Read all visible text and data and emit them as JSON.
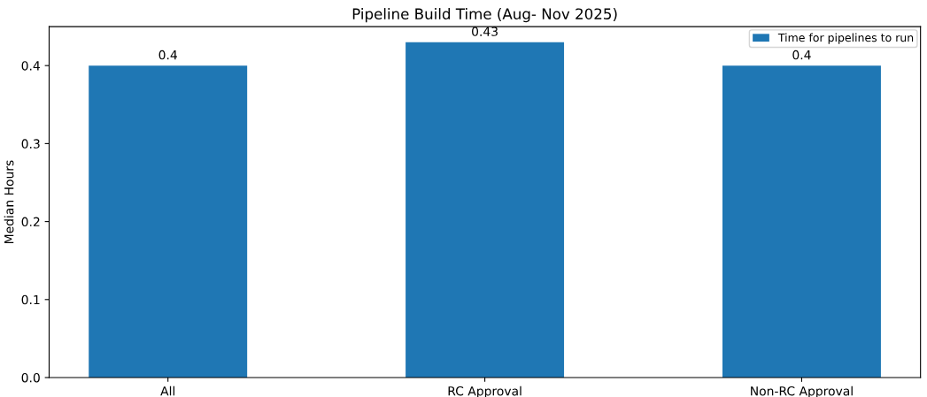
{
  "chart_data": {
    "type": "bar",
    "title": "Pipeline Build Time (Aug- Nov 2025)",
    "ylabel": "Median Hours",
    "categories": [
      "All",
      "RC Approval",
      "Non-RC Approval"
    ],
    "series": [
      {
        "name": "Time for pipelines to run",
        "color": "#1f77b4",
        "values": [
          0.4,
          0.43,
          0.4
        ]
      }
    ],
    "ylim": [
      0,
      0.45
    ],
    "yticks": [
      {
        "value": 0,
        "label": "0.0"
      },
      0.1,
      0.2,
      0.3,
      0.4
    ],
    "data_labels": true,
    "legend": "top right",
    "grid": false
  }
}
